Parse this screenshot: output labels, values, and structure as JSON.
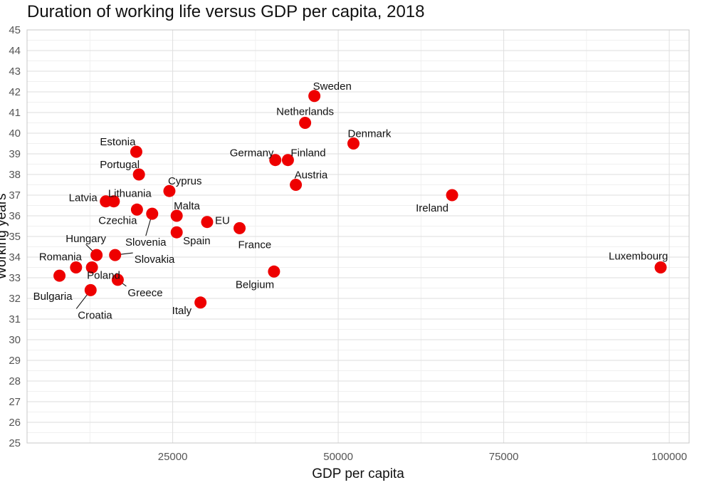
{
  "chart_data": {
    "type": "scatter",
    "title": "Duration of working life versus GDP per capita, 2018",
    "xlabel": "GDP per capita",
    "ylabel": "Working years",
    "xlim": [
      3000,
      103000
    ],
    "ylim": [
      25,
      45
    ],
    "x_ticks": [
      25000,
      50000,
      75000,
      100000
    ],
    "y_ticks": [
      25,
      26,
      27,
      28,
      29,
      30,
      31,
      32,
      33,
      34,
      35,
      36,
      37,
      38,
      39,
      40,
      41,
      42,
      43,
      44,
      45
    ],
    "grid": true,
    "marker_color": "#ee0000",
    "points": [
      {
        "name": "Sweden",
        "x": 46400,
        "y": 41.8
      },
      {
        "name": "Netherlands",
        "x": 45000,
        "y": 40.5
      },
      {
        "name": "Denmark",
        "x": 52300,
        "y": 39.5
      },
      {
        "name": "Germany",
        "x": 40500,
        "y": 38.7
      },
      {
        "name": "Finland",
        "x": 42400,
        "y": 38.7
      },
      {
        "name": "Austria",
        "x": 43600,
        "y": 37.5
      },
      {
        "name": "Ireland",
        "x": 67200,
        "y": 37.0
      },
      {
        "name": "Estonia",
        "x": 19500,
        "y": 39.1
      },
      {
        "name": "Portugal",
        "x": 19900,
        "y": 38.0
      },
      {
        "name": "Cyprus",
        "x": 24500,
        "y": 37.2
      },
      {
        "name": "Latvia",
        "x": 14900,
        "y": 36.7
      },
      {
        "name": "Lithuania",
        "x": 16100,
        "y": 36.7
      },
      {
        "name": "Czechia",
        "x": 19600,
        "y": 36.3
      },
      {
        "name": "Slovenia",
        "x": 21900,
        "y": 36.1
      },
      {
        "name": "Malta",
        "x": 25600,
        "y": 36.0
      },
      {
        "name": "EU",
        "x": 30200,
        "y": 35.7
      },
      {
        "name": "Spain",
        "x": 25600,
        "y": 35.2
      },
      {
        "name": "France",
        "x": 35100,
        "y": 35.4
      },
      {
        "name": "Hungary",
        "x": 13500,
        "y": 34.1
      },
      {
        "name": "Slovakia",
        "x": 16300,
        "y": 34.1
      },
      {
        "name": "Romania",
        "x": 10400,
        "y": 33.5
      },
      {
        "name": "Poland",
        "x": 12800,
        "y": 33.5
      },
      {
        "name": "Bulgaria",
        "x": 7900,
        "y": 33.1
      },
      {
        "name": "Greece",
        "x": 16700,
        "y": 32.9
      },
      {
        "name": "Croatia",
        "x": 12600,
        "y": 32.4
      },
      {
        "name": "Belgium",
        "x": 40300,
        "y": 33.3
      },
      {
        "name": "Italy",
        "x": 29200,
        "y": 31.8
      },
      {
        "name": "Luxembourg",
        "x": 98700,
        "y": 33.5
      }
    ]
  }
}
